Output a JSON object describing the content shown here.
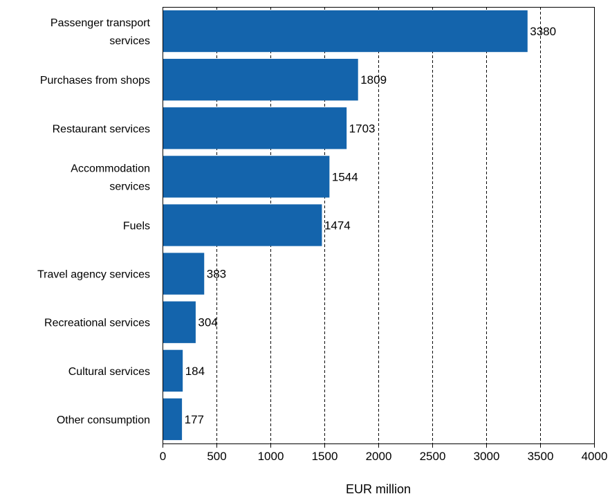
{
  "chart_data": {
    "type": "bar",
    "orientation": "horizontal",
    "title": "",
    "xlabel": "EUR million",
    "ylabel": "",
    "xlim": [
      0,
      4000
    ],
    "x_ticks": [
      0,
      500,
      1000,
      1500,
      2000,
      2500,
      3000,
      3500,
      4000
    ],
    "grid": "vertical dashed",
    "categories": [
      [
        "Passenger transport",
        "services"
      ],
      [
        "Purchases from shops"
      ],
      [
        "Restaurant services"
      ],
      [
        "Accommodation",
        "services"
      ],
      [
        "Fuels"
      ],
      [
        "Travel agency services"
      ],
      [
        "Recreational services"
      ],
      [
        "Cultural services"
      ],
      [
        "Other consumption"
      ]
    ],
    "values": [
      3380,
      1809,
      1703,
      1544,
      1474,
      383,
      304,
      184,
      177
    ],
    "bar_color": "#1464ac"
  }
}
